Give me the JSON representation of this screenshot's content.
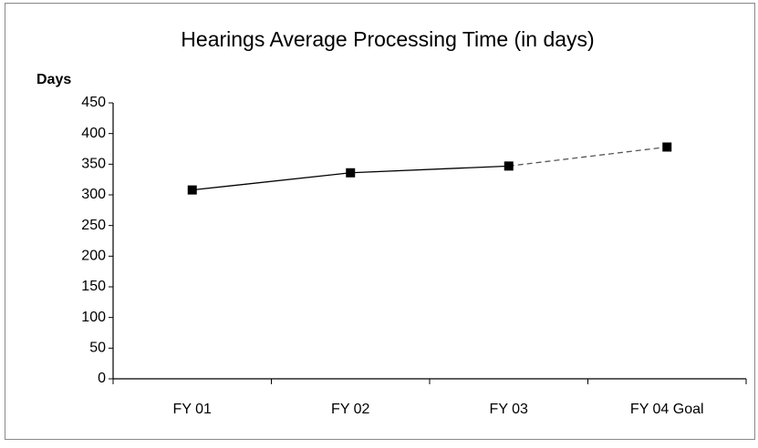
{
  "chart_data": {
    "type": "line",
    "title": "Hearings Average Processing Time (in days)",
    "y_label": "Days",
    "categories": [
      "FY 01",
      "FY 02",
      "FY 03",
      "FY 04 Goal"
    ],
    "values": [
      308,
      336,
      347,
      378
    ],
    "color": "#000000",
    "last_segment_style": "dashed",
    "ylim": [
      0,
      450
    ],
    "yticks": [
      0,
      50,
      100,
      150,
      200,
      250,
      300,
      350,
      400,
      450
    ],
    "grid": false
  }
}
